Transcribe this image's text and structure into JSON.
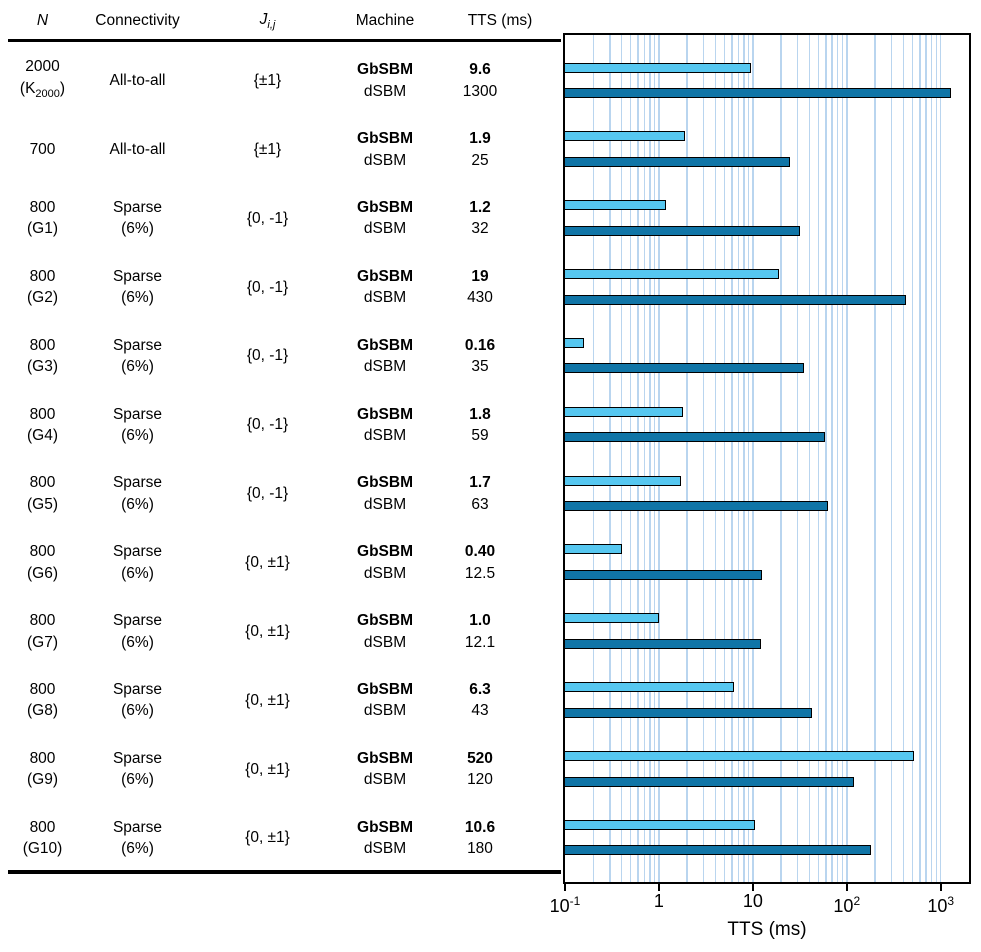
{
  "table": {
    "headers": {
      "n": "N",
      "connectivity": "Connectivity",
      "j_base": "J",
      "j_sub": "i,j",
      "machine": "Machine",
      "tts": "TTS (ms)"
    },
    "rows": [
      {
        "n": [
          {
            "text": "2000"
          },
          {
            "pre": "(K",
            "sub": "2000",
            "post": ")"
          }
        ],
        "connectivity": [
          "All-to-all"
        ],
        "j": "{±1}",
        "entries": [
          {
            "machine": "GbSBM",
            "tts": "9.6",
            "bold": true
          },
          {
            "machine": "dSBM",
            "tts": "1300",
            "bold": false
          }
        ]
      },
      {
        "n": [
          {
            "text": "700"
          }
        ],
        "connectivity": [
          "All-to-all"
        ],
        "j": "{±1}",
        "entries": [
          {
            "machine": "GbSBM",
            "tts": "1.9",
            "bold": true
          },
          {
            "machine": "dSBM",
            "tts": "25",
            "bold": false
          }
        ]
      },
      {
        "n": [
          {
            "text": "800"
          },
          {
            "text": "(G1)"
          }
        ],
        "connectivity": [
          "Sparse",
          "(6%)"
        ],
        "j": "{0, -1}",
        "entries": [
          {
            "machine": "GbSBM",
            "tts": "1.2",
            "bold": true
          },
          {
            "machine": "dSBM",
            "tts": "32",
            "bold": false
          }
        ]
      },
      {
        "n": [
          {
            "text": "800"
          },
          {
            "text": "(G2)"
          }
        ],
        "connectivity": [
          "Sparse",
          "(6%)"
        ],
        "j": "{0, -1}",
        "entries": [
          {
            "machine": "GbSBM",
            "tts": "19",
            "bold": true
          },
          {
            "machine": "dSBM",
            "tts": "430",
            "bold": false
          }
        ]
      },
      {
        "n": [
          {
            "text": "800"
          },
          {
            "text": "(G3)"
          }
        ],
        "connectivity": [
          "Sparse",
          "(6%)"
        ],
        "j": "{0, -1}",
        "entries": [
          {
            "machine": "GbSBM",
            "tts": "0.16",
            "bold": true
          },
          {
            "machine": "dSBM",
            "tts": "35",
            "bold": false
          }
        ]
      },
      {
        "n": [
          {
            "text": "800"
          },
          {
            "text": "(G4)"
          }
        ],
        "connectivity": [
          "Sparse",
          "(6%)"
        ],
        "j": "{0, -1}",
        "entries": [
          {
            "machine": "GbSBM",
            "tts": "1.8",
            "bold": true
          },
          {
            "machine": "dSBM",
            "tts": "59",
            "bold": false
          }
        ]
      },
      {
        "n": [
          {
            "text": "800"
          },
          {
            "text": "(G5)"
          }
        ],
        "connectivity": [
          "Sparse",
          "(6%)"
        ],
        "j": "{0, -1}",
        "entries": [
          {
            "machine": "GbSBM",
            "tts": "1.7",
            "bold": true
          },
          {
            "machine": "dSBM",
            "tts": "63",
            "bold": false
          }
        ]
      },
      {
        "n": [
          {
            "text": "800"
          },
          {
            "text": "(G6)"
          }
        ],
        "connectivity": [
          "Sparse",
          "(6%)"
        ],
        "j": "{0, ±1}",
        "entries": [
          {
            "machine": "GbSBM",
            "tts": "0.40",
            "bold": true
          },
          {
            "machine": "dSBM",
            "tts": "12.5",
            "bold": false
          }
        ]
      },
      {
        "n": [
          {
            "text": "800"
          },
          {
            "text": "(G7)"
          }
        ],
        "connectivity": [
          "Sparse",
          "(6%)"
        ],
        "j": "{0, ±1}",
        "entries": [
          {
            "machine": "GbSBM",
            "tts": "1.0",
            "bold": true
          },
          {
            "machine": "dSBM",
            "tts": "12.1",
            "bold": false
          }
        ]
      },
      {
        "n": [
          {
            "text": "800"
          },
          {
            "text": "(G8)"
          }
        ],
        "connectivity": [
          "Sparse",
          "(6%)"
        ],
        "j": "{0, ±1}",
        "entries": [
          {
            "machine": "GbSBM",
            "tts": "6.3",
            "bold": true
          },
          {
            "machine": "dSBM",
            "tts": "43",
            "bold": false
          }
        ]
      },
      {
        "n": [
          {
            "text": "800"
          },
          {
            "text": "(G9)"
          }
        ],
        "connectivity": [
          "Sparse",
          "(6%)"
        ],
        "j": "{0, ±1}",
        "entries": [
          {
            "machine": "GbSBM",
            "tts": "520",
            "bold": true
          },
          {
            "machine": "dSBM",
            "tts": "120",
            "bold": false
          }
        ]
      },
      {
        "n": [
          {
            "text": "800"
          },
          {
            "text": "(G10)"
          }
        ],
        "connectivity": [
          "Sparse",
          "(6%)"
        ],
        "j": "{0, ±1}",
        "entries": [
          {
            "machine": "GbSBM",
            "tts": "10.6",
            "bold": true
          },
          {
            "machine": "dSBM",
            "tts": "180",
            "bold": false
          }
        ]
      }
    ]
  },
  "chart_data": {
    "type": "bar",
    "orientation": "horizontal",
    "xscale": "log",
    "xlim": [
      0.1,
      2000
    ],
    "xlabel": "TTS (ms)",
    "grid": "minor-and-major-vertical",
    "legend": "none",
    "categories": [
      "2000 (K2000)",
      "700",
      "800 (G1)",
      "800 (G2)",
      "800 (G3)",
      "800 (G4)",
      "800 (G5)",
      "800 (G6)",
      "800 (G7)",
      "800 (G8)",
      "800 (G9)",
      "800 (G10)"
    ],
    "series": [
      {
        "name": "GbSBM",
        "color": "#56C7F0",
        "values": [
          9.6,
          1.9,
          1.2,
          19,
          0.16,
          1.8,
          1.7,
          0.4,
          1.0,
          6.3,
          520,
          10.6
        ]
      },
      {
        "name": "dSBM",
        "color": "#1075A7",
        "values": [
          1300,
          25,
          32,
          430,
          35,
          59,
          63,
          12.5,
          12.1,
          43,
          120,
          180
        ]
      }
    ],
    "xticks": [
      {
        "base": "10",
        "sup": "-1",
        "value": 0.1
      },
      {
        "base": "1",
        "sup": "",
        "value": 1
      },
      {
        "base": "10",
        "sup": "",
        "value": 10
      },
      {
        "base": "10",
        "sup": "2",
        "value": 100
      },
      {
        "base": "10",
        "sup": "3",
        "value": 1000
      }
    ],
    "colors": {
      "gridline": "#B9D5EF",
      "bar_border": "#000000",
      "axis": "#000000"
    }
  }
}
